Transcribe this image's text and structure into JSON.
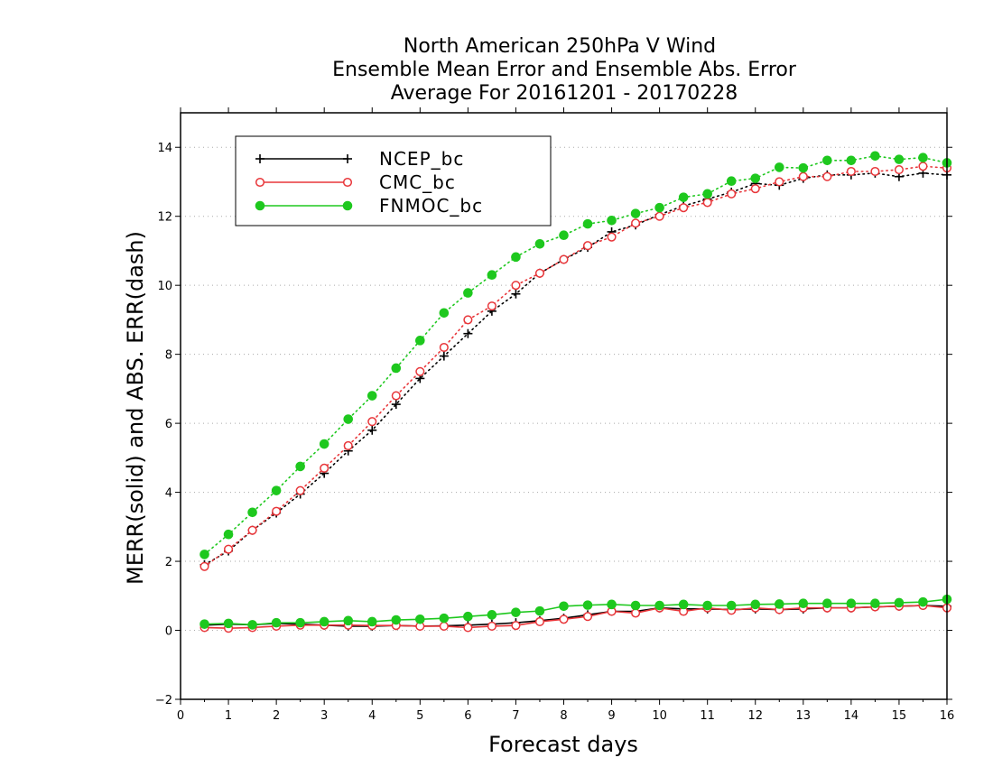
{
  "chart_data": {
    "type": "line",
    "title": [
      "North American 250hPa V Wind",
      "Ensemble Mean Error and Ensemble Abs. Error",
      "Average For 20161201 - 20170228"
    ],
    "xlabel": "Forecast days",
    "ylabel": "MERR(solid) and ABS. ERR(dash)",
    "xlim": [
      0,
      16
    ],
    "ylim": [
      -2,
      15
    ],
    "xticks": [
      "0",
      "1",
      "2",
      "3",
      "4",
      "5",
      "6",
      "7",
      "8",
      "9",
      "10",
      "11",
      "12",
      "13",
      "14",
      "15",
      "16"
    ],
    "yticks": [
      "−2",
      "0",
      "2",
      "4",
      "6",
      "8",
      "10",
      "12",
      "14"
    ],
    "grid": "horizontal dotted",
    "legend_position": "top-left",
    "x": [
      0.5,
      1,
      1.5,
      2,
      2.5,
      3,
      3.5,
      4,
      4.5,
      5,
      5.5,
      6,
      6.5,
      7,
      7.5,
      8,
      8.5,
      9,
      9.5,
      10,
      10.5,
      11,
      11.5,
      12,
      12.5,
      13,
      13.5,
      14,
      14.5,
      15,
      15.5,
      16
    ],
    "series": [
      {
        "name": "NCEP_bc",
        "color": "#000000",
        "marker": "plus",
        "merr": [
          0.15,
          0.18,
          0.16,
          0.2,
          0.18,
          0.15,
          0.12,
          0.12,
          0.14,
          0.12,
          0.13,
          0.15,
          0.18,
          0.22,
          0.28,
          0.35,
          0.45,
          0.55,
          0.55,
          0.65,
          0.62,
          0.62,
          0.6,
          0.62,
          0.6,
          0.62,
          0.65,
          0.65,
          0.68,
          0.7,
          0.72,
          0.7
        ],
        "abs_err": [
          1.9,
          2.3,
          2.9,
          3.4,
          3.95,
          4.55,
          5.2,
          5.8,
          6.55,
          7.3,
          7.95,
          8.6,
          9.25,
          9.75,
          10.35,
          10.75,
          11.1,
          11.55,
          11.75,
          12.05,
          12.3,
          12.5,
          12.7,
          12.95,
          12.9,
          13.1,
          13.2,
          13.2,
          13.25,
          13.15,
          13.25,
          13.2
        ]
      },
      {
        "name": "CMC_bc",
        "color": "#e8363a",
        "marker": "open-circle",
        "merr": [
          0.08,
          0.06,
          0.08,
          0.12,
          0.15,
          0.15,
          0.15,
          0.14,
          0.14,
          0.12,
          0.12,
          0.08,
          0.12,
          0.14,
          0.25,
          0.32,
          0.4,
          0.55,
          0.5,
          0.65,
          0.55,
          0.65,
          0.58,
          0.65,
          0.6,
          0.65,
          0.65,
          0.65,
          0.68,
          0.7,
          0.72,
          0.65
        ],
        "abs_err": [
          1.85,
          2.35,
          2.9,
          3.45,
          4.05,
          4.7,
          5.35,
          6.05,
          6.8,
          7.5,
          8.2,
          9.0,
          9.4,
          10.0,
          10.35,
          10.75,
          11.15,
          11.4,
          11.8,
          12.0,
          12.25,
          12.4,
          12.65,
          12.8,
          13.0,
          13.15,
          13.15,
          13.3,
          13.3,
          13.35,
          13.45,
          13.4
        ]
      },
      {
        "name": "FNMOC_bc",
        "color": "#1ec81e",
        "marker": "filled-circle",
        "merr": [
          0.18,
          0.2,
          0.16,
          0.22,
          0.22,
          0.25,
          0.28,
          0.25,
          0.3,
          0.32,
          0.35,
          0.4,
          0.45,
          0.52,
          0.56,
          0.7,
          0.73,
          0.75,
          0.72,
          0.72,
          0.75,
          0.72,
          0.72,
          0.75,
          0.76,
          0.78,
          0.78,
          0.78,
          0.78,
          0.8,
          0.82,
          0.9
        ],
        "abs_err": [
          2.2,
          2.78,
          3.42,
          4.05,
          4.75,
          5.4,
          6.12,
          6.8,
          7.6,
          8.4,
          9.2,
          9.78,
          10.3,
          10.82,
          11.2,
          11.45,
          11.78,
          11.88,
          12.08,
          12.25,
          12.55,
          12.65,
          13.02,
          13.1,
          13.42,
          13.4,
          13.62,
          13.62,
          13.75,
          13.65,
          13.7,
          13.55
        ]
      }
    ]
  }
}
